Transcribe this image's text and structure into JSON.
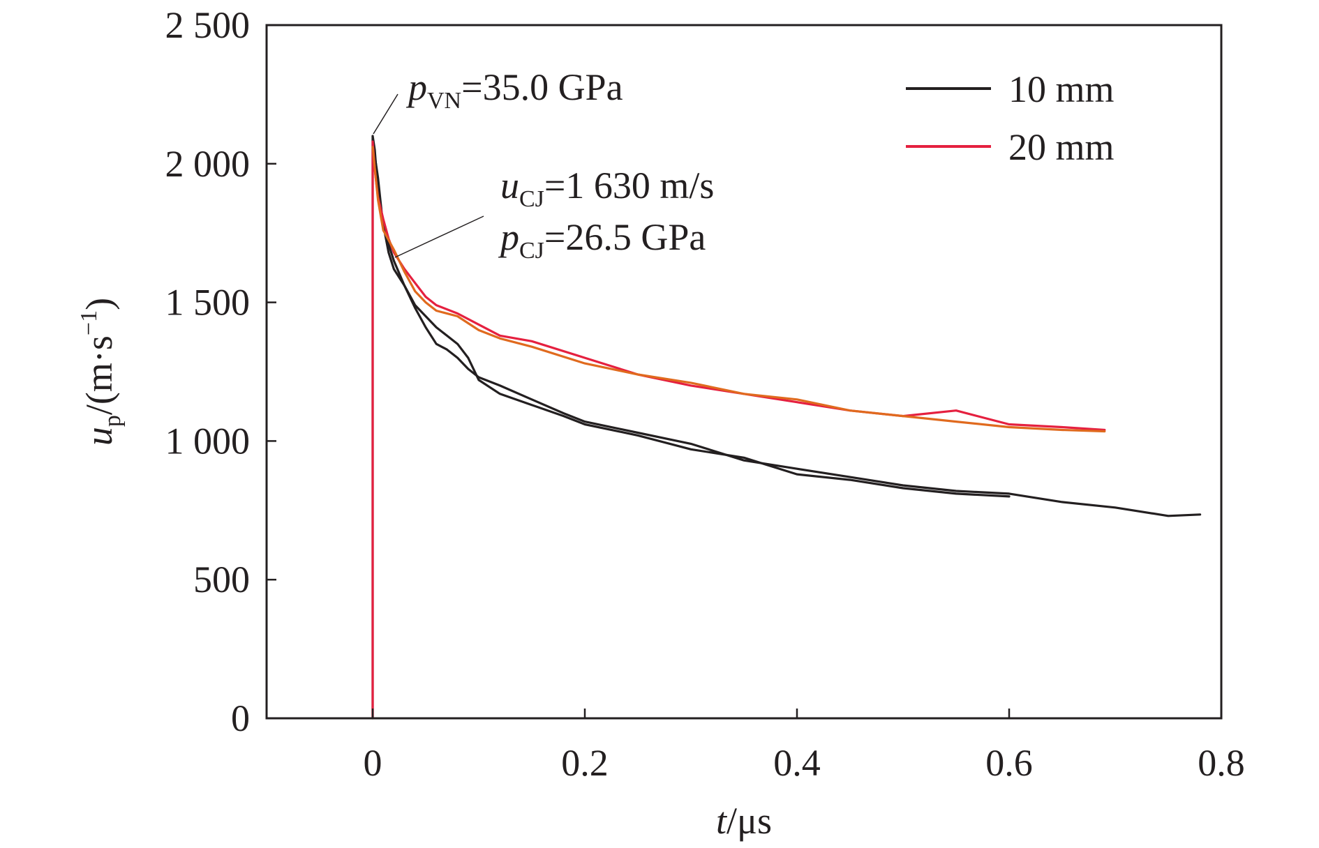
{
  "chart_data": {
    "type": "line",
    "title": "",
    "xlabel": {
      "var": "t",
      "unit": "/μs"
    },
    "ylabel": {
      "var": "u",
      "sub": "p",
      "unit_pre": "/(m·s",
      "unit_sup": "−1",
      "unit_post": ")"
    },
    "xlim": [
      -0.1,
      0.8
    ],
    "ylim": [
      0,
      2500
    ],
    "xticks": [
      0,
      0.2,
      0.4,
      0.6,
      0.8
    ],
    "xtick_labels": [
      "0",
      "0.2",
      "0.4",
      "0.6",
      "0.8"
    ],
    "yticks": [
      0,
      500,
      1000,
      1500,
      2000,
      2500
    ],
    "ytick_labels": [
      "0",
      "500",
      "1 000",
      "1 500",
      "2 000",
      "2 500"
    ],
    "grid": false,
    "legend_position": "top-right",
    "series": [
      {
        "name": "10 mm",
        "color": "#231f20",
        "curves": [
          {
            "x": [
              0,
              0,
              0.002,
              0.005,
              0.01,
              0.015,
              0.02,
              0.03,
              0.04,
              0.05,
              0.06,
              0.07,
              0.08,
              0.09,
              0.1,
              0.12,
              0.15,
              0.18,
              0.2,
              0.25,
              0.3,
              0.35,
              0.4,
              0.45,
              0.5,
              0.55,
              0.6
            ],
            "y": [
              0,
              2100,
              2050,
              1900,
              1780,
              1680,
              1620,
              1560,
              1490,
              1450,
              1410,
              1380,
              1350,
              1300,
              1220,
              1170,
              1130,
              1090,
              1060,
              1020,
              970,
              940,
              880,
              860,
              830,
              810,
              800
            ]
          },
          {
            "x": [
              0,
              0.005,
              0.01,
              0.02,
              0.03,
              0.04,
              0.05,
              0.06,
              0.07,
              0.08,
              0.09,
              0.1,
              0.12,
              0.15,
              0.18,
              0.2,
              0.25,
              0.3,
              0.35,
              0.4,
              0.45,
              0.5,
              0.55,
              0.6,
              0.65,
              0.7,
              0.75,
              0.78
            ],
            "y": [
              2080,
              1950,
              1770,
              1650,
              1560,
              1480,
              1410,
              1350,
              1330,
              1300,
              1260,
              1230,
              1200,
              1150,
              1100,
              1070,
              1030,
              990,
              930,
              900,
              870,
              840,
              820,
              810,
              780,
              760,
              730,
              735
            ]
          }
        ]
      },
      {
        "name": "20 mm",
        "color": "#e5203f",
        "curves": [
          {
            "x": [
              0,
              0,
              0.002,
              0.005,
              0.01,
              0.015,
              0.02,
              0.03,
              0.04,
              0.05,
              0.06,
              0.08,
              0.1,
              0.12,
              0.15,
              0.2,
              0.25,
              0.3,
              0.35,
              0.4,
              0.45,
              0.5,
              0.55,
              0.6,
              0.65,
              0.69
            ],
            "y": [
              0,
              2080,
              1980,
              1880,
              1800,
              1730,
              1680,
              1620,
              1570,
              1520,
              1490,
              1460,
              1420,
              1380,
              1360,
              1300,
              1240,
              1200,
              1170,
              1140,
              1110,
              1090,
              1110,
              1060,
              1050,
              1040
            ]
          }
        ]
      },
      {
        "name": "",
        "color": "#e06a1e",
        "curves": [
          {
            "x": [
              0,
              0.005,
              0.01,
              0.02,
              0.03,
              0.04,
              0.05,
              0.06,
              0.08,
              0.1,
              0.12,
              0.15,
              0.2,
              0.25,
              0.3,
              0.35,
              0.4,
              0.45,
              0.5,
              0.55,
              0.6,
              0.65,
              0.69
            ],
            "y": [
              2060,
              1870,
              1760,
              1690,
              1610,
              1540,
              1500,
              1470,
              1450,
              1400,
              1370,
              1340,
              1280,
              1240,
              1210,
              1170,
              1150,
              1110,
              1090,
              1070,
              1050,
              1040,
              1035
            ]
          }
        ]
      }
    ],
    "annotations": [
      {
        "var": "p",
        "sub": "VN",
        "text": "=35.0 GPa",
        "x": 0,
        "y": 2110
      },
      {
        "var": "u",
        "sub": "CJ",
        "text": "=1 630 m/s",
        "x": 0.02,
        "y": 1660
      },
      {
        "var": "p",
        "sub": "CJ",
        "text": "=26.5 GPa"
      }
    ]
  }
}
